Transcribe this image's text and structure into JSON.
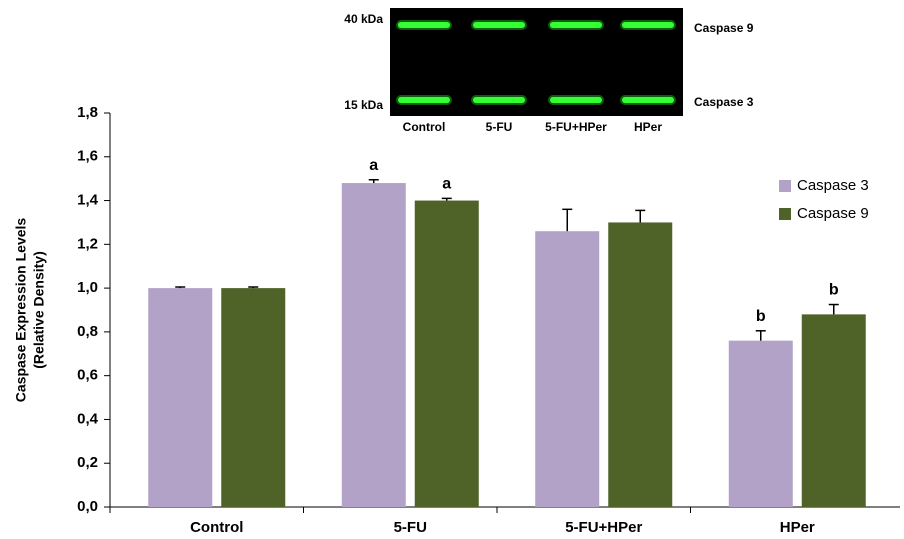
{
  "chart_data": {
    "type": "bar",
    "ylabel": [
      "Caspase  Expression  Levels",
      "(Relative Density)"
    ],
    "categories": [
      "Control",
      "5-FU",
      "5-FU+HPer",
      "HPer"
    ],
    "series": [
      {
        "name": "Caspase 3",
        "color": "#b3a2c8",
        "values": [
          1.0,
          1.48,
          1.26,
          0.76
        ],
        "errors": [
          0.005,
          0.015,
          0.1,
          0.045
        ],
        "letters": [
          null,
          "a",
          null,
          "b"
        ]
      },
      {
        "name": "Caspase 9",
        "color": "#4f6228",
        "values": [
          1.0,
          1.4,
          1.3,
          0.88
        ],
        "errors": [
          0.005,
          0.01,
          0.055,
          0.045
        ],
        "letters": [
          null,
          "a",
          null,
          "b"
        ]
      }
    ],
    "ylim": [
      0,
      1.8
    ],
    "yticks": [
      {
        "value": 0,
        "label": "0,0"
      },
      {
        "value": 0.2,
        "label": "0,2"
      },
      {
        "value": 0.4,
        "label": "0,4"
      },
      {
        "value": 0.6,
        "label": "0,6"
      },
      {
        "value": 0.8,
        "label": "0,8"
      },
      {
        "value": 1.0,
        "label": "1,0"
      },
      {
        "value": 1.2,
        "label": "1,2"
      },
      {
        "value": 1.4,
        "label": "1,4"
      },
      {
        "value": 1.6,
        "label": "1,6"
      },
      {
        "value": 1.8,
        "label": "1,8"
      }
    ],
    "legend": "right",
    "inset": {
      "markers": [
        "40 kDa",
        "15 kDa"
      ],
      "bands": [
        "Caspase 9",
        "Caspase 3"
      ],
      "lanes": [
        "Control",
        "5-FU",
        "5-FU+HPer",
        "HPer"
      ]
    }
  }
}
